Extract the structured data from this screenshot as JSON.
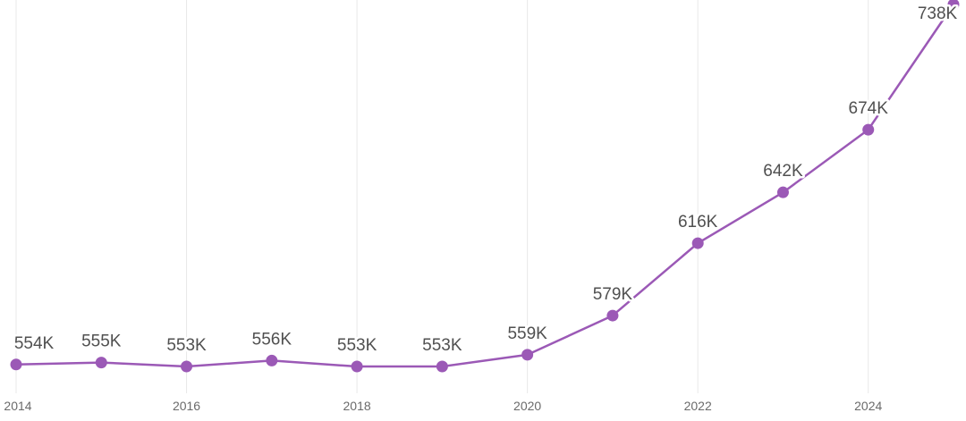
{
  "colors": {
    "series": "#9b59b6",
    "grid": "#e8e8e8",
    "label": "#505050",
    "tick": "#6a6a6a"
  },
  "chart_data": {
    "type": "line",
    "title": "",
    "xlabel": "",
    "ylabel": "",
    "grid": "vertical",
    "x": [
      2014,
      2015,
      2016,
      2017,
      2018,
      2019,
      2020,
      2021,
      2022,
      2023,
      2024,
      2025
    ],
    "x_ticks": [
      2014,
      2016,
      2018,
      2020,
      2022,
      2024
    ],
    "x_tick_labels": [
      "2014",
      "2016",
      "2018",
      "2020",
      "2022",
      "2024"
    ],
    "xlim": [
      2014,
      2025
    ],
    "ylim": [
      553,
      738
    ],
    "series": [
      {
        "values": [
          554,
          555,
          553,
          556,
          553,
          553,
          559,
          579,
          616,
          642,
          674,
          738
        ],
        "labels": [
          "554K",
          "555K",
          "553K",
          "556K",
          "553K",
          "553K",
          "559K",
          "579K",
          "616K",
          "642K",
          "674K",
          "738K"
        ]
      }
    ]
  }
}
